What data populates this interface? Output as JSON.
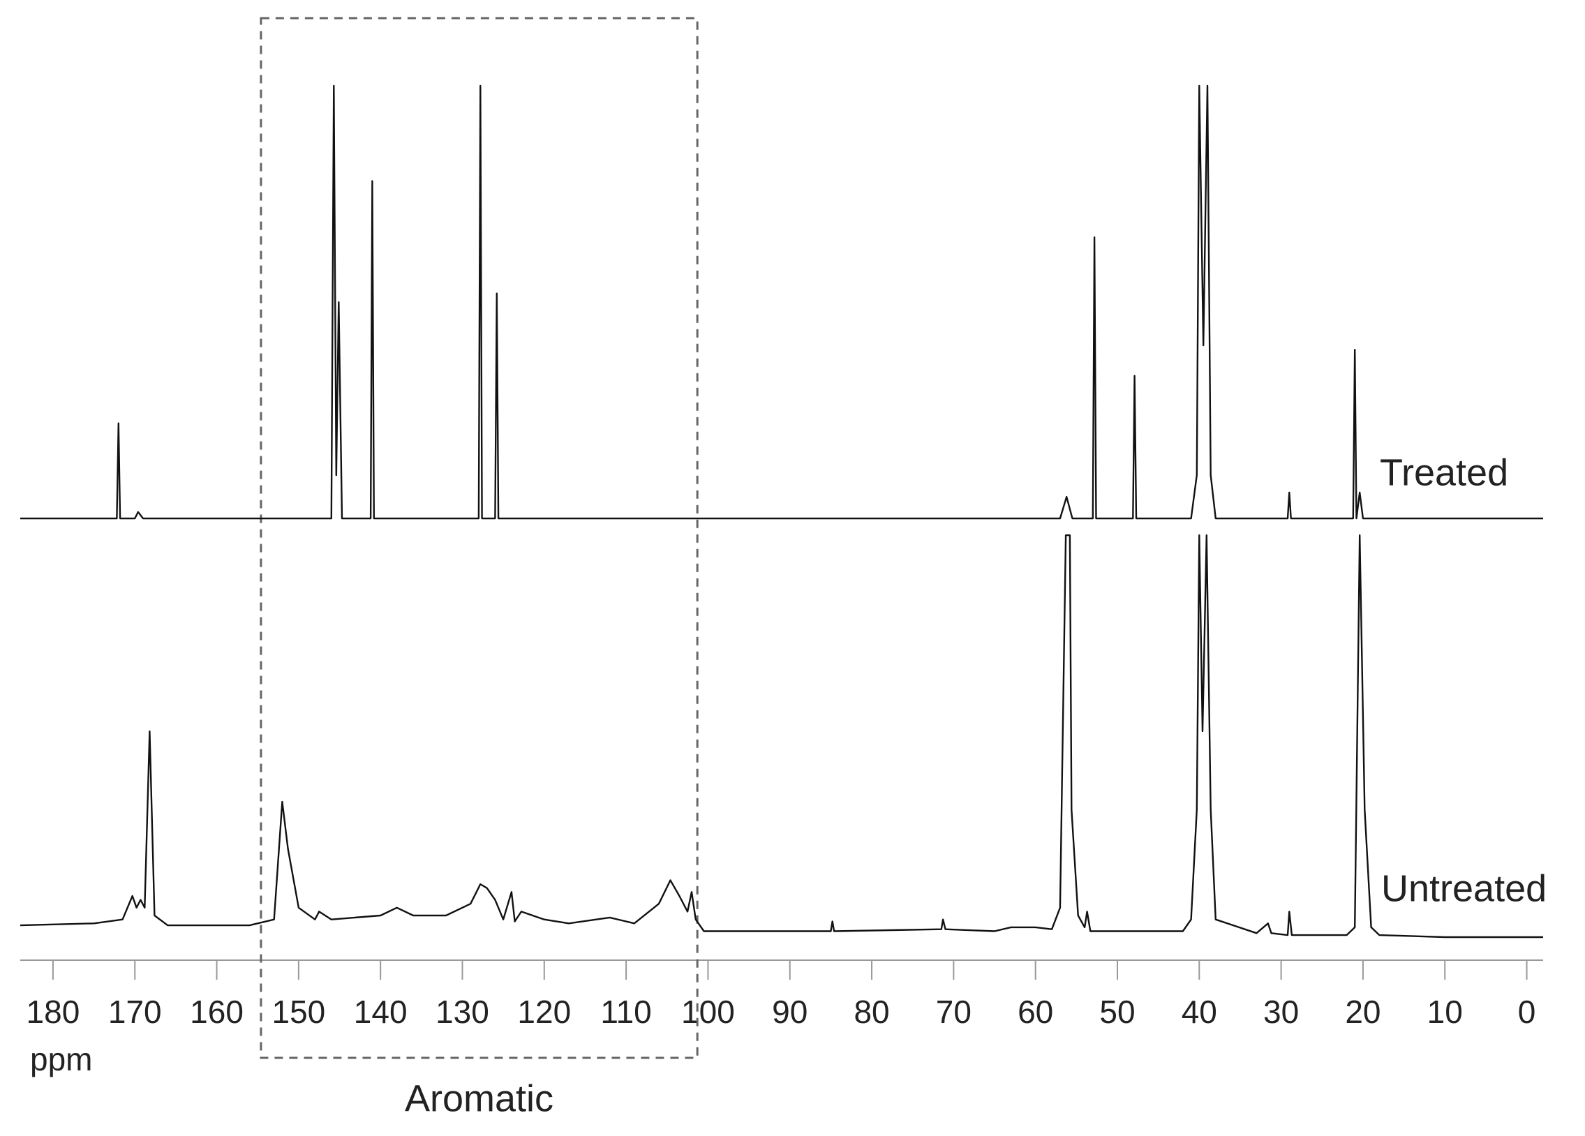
{
  "chart_data": {
    "type": "line",
    "xlabel": "ppm",
    "xlim": [
      184,
      -2
    ],
    "xticks": [
      180,
      170,
      160,
      150,
      140,
      130,
      120,
      110,
      100,
      90,
      80,
      70,
      60,
      50,
      40,
      30,
      20,
      10,
      0
    ],
    "ylim": [
      -5,
      100
    ],
    "annotations": [
      {
        "text": "Aromatic",
        "x_range": [
          154.6,
          101.3
        ]
      }
    ],
    "series": [
      {
        "name": "Treated",
        "color": "#111111",
        "x": [
          184,
          172.2,
          172,
          171.8,
          170,
          169.6,
          169,
          146,
          145.7,
          145.4,
          145.1,
          144.7,
          141.2,
          141,
          140.8,
          128,
          127.8,
          127.6,
          126,
          125.8,
          125.6,
          57,
          56.2,
          55.5,
          53,
          52.8,
          52.6,
          48.1,
          47.9,
          47.7,
          41,
          40.3,
          40,
          39.5,
          39,
          38.6,
          38,
          29.2,
          29,
          28.8,
          21.2,
          21,
          20.8,
          20.4,
          20,
          -2
        ],
        "values": [
          0,
          0,
          22,
          0,
          0,
          1.5,
          0,
          0,
          100,
          10,
          50,
          0,
          0,
          78,
          0,
          0,
          100,
          0,
          0,
          52,
          0,
          0,
          5,
          0,
          0,
          65,
          0,
          0,
          33,
          0,
          0,
          10,
          100,
          40,
          100,
          10,
          0,
          0,
          6,
          0,
          0,
          39,
          0,
          6,
          0,
          0
        ]
      },
      {
        "name": "Untreated",
        "color": "#111111",
        "x": [
          184,
          175,
          171.5,
          170.3,
          169.8,
          169.3,
          168.8,
          168.2,
          167.6,
          166,
          156,
          153,
          152,
          151.3,
          150,
          148,
          147.5,
          146,
          140,
          138,
          136,
          132,
          129,
          127.8,
          127,
          126,
          125,
          124,
          123.6,
          122.8,
          120,
          117,
          112,
          109,
          106,
          104.6,
          103.5,
          102.5,
          102,
          101.5,
          100.5,
          85,
          84.8,
          84.6,
          71.5,
          71.3,
          71,
          65,
          63,
          60,
          58,
          57,
          56.3,
          55.8,
          55.6,
          54.8,
          54,
          53.7,
          53.3,
          42,
          41,
          40.3,
          40,
          39.6,
          39.1,
          38.6,
          38,
          33,
          31.6,
          31.2,
          29.2,
          29,
          28.7,
          22,
          21,
          20.4,
          19.8,
          19,
          18,
          10,
          -2
        ],
        "values": [
          0.5,
          1,
          2,
          8,
          5,
          7,
          5,
          50,
          3,
          0.5,
          0.5,
          2,
          32,
          20,
          5,
          2,
          4,
          2,
          3,
          5,
          3,
          3,
          6,
          11,
          10,
          7,
          2,
          9,
          1.5,
          4,
          2,
          1,
          2.5,
          1,
          6,
          12,
          8,
          4,
          9,
          2,
          -1,
          -1,
          1.5,
          -1,
          -0.5,
          2,
          -0.5,
          -1,
          0,
          0,
          -0.5,
          5,
          100,
          100,
          30,
          3,
          0,
          4,
          -1,
          -1,
          2,
          30,
          100,
          50,
          100,
          30,
          2,
          -1.5,
          1,
          -1.5,
          -2,
          4,
          -2,
          -2,
          0,
          100,
          30,
          0,
          -2,
          -2.5,
          -2.5
        ]
      }
    ]
  }
}
